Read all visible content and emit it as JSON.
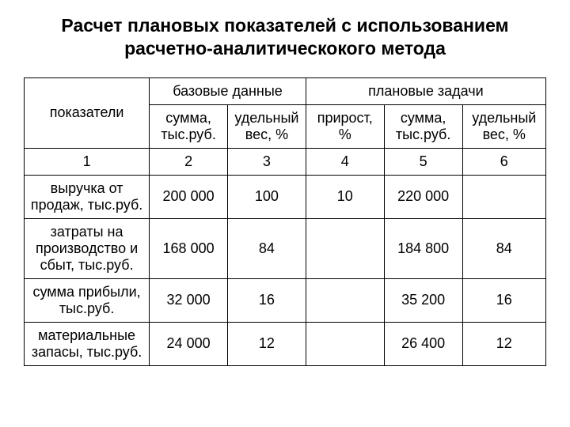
{
  "title": "Расчет плановых показателей с использованием расчетно-аналитическокого метода",
  "table": {
    "border_color": "#000000",
    "background_color": "#ffffff",
    "text_color": "#000000",
    "font_family": "Arial, sans-serif",
    "title_fontsize": 23,
    "cell_fontsize": 18,
    "column_widths_pct": [
      24,
      15,
      15,
      15,
      15,
      16
    ],
    "header": {
      "row1": {
        "c0": "показатели",
        "c1": "базовые данные",
        "c2": "плановые задачи"
      },
      "row2": {
        "c1": "сумма, тыс.руб.",
        "c2": "удельный вес, %",
        "c3": "прирост, %",
        "c4": "сумма, тыс.руб.",
        "c5": "удельный вес, %"
      },
      "row3": {
        "c0": "1",
        "c1": "2",
        "c2": "3",
        "c3": "4",
        "c4": "5",
        "c5": "6"
      }
    },
    "rows": [
      {
        "c0": "выручка от продаж, тыс.руб.",
        "c1": "200 000",
        "c2": "100",
        "c3": "10",
        "c4": "220 000",
        "c5": ""
      },
      {
        "c0": "затраты на производство и сбыт, тыс.руб.",
        "c1": "168 000",
        "c2": "84",
        "c3": "",
        "c4": "184 800",
        "c5": "84"
      },
      {
        "c0": "сумма прибыли, тыс.руб.",
        "c1": "32 000",
        "c2": "16",
        "c3": "",
        "c4": "35 200",
        "c5": "16"
      },
      {
        "c0": "материальные запасы, тыс.руб.",
        "c1": "24 000",
        "c2": "12",
        "c3": "",
        "c4": "26 400",
        "c5": "12"
      }
    ]
  }
}
